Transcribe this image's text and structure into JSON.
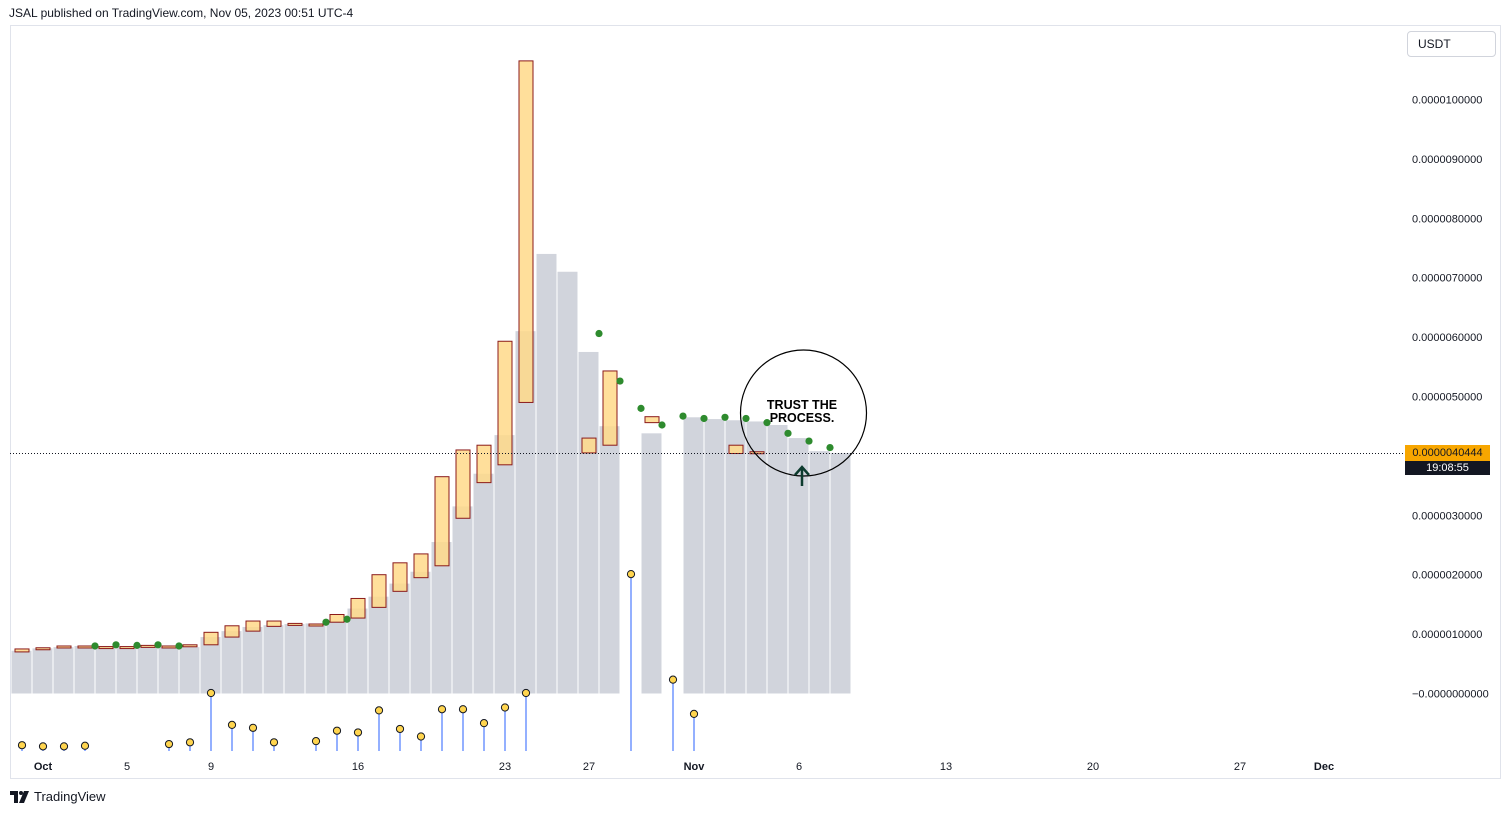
{
  "header": {
    "title": "JSAL published on TradingView.com, Nov 05, 2023 00:51 UTC-4"
  },
  "currency": {
    "label": "USDT"
  },
  "price_tag": {
    "price": "0.0000040444",
    "countdown": "19:08:55"
  },
  "annotation": {
    "line1": "TRUST THE",
    "line2": "PROCESS."
  },
  "footer": {
    "brand": "TradingView",
    "logo_icon": "tradingview-logo-icon"
  },
  "colors": {
    "candle_body": "#ffd98a",
    "candle_border": "#8b1a1a",
    "volume_bar": "#d1d4dc",
    "dot_green": "#2e8b2e",
    "lollipop_line": "#2962ff",
    "lollipop_head": "#ffd54f",
    "price_tag": "#f7a600"
  },
  "chart_data": {
    "type": "candlestick",
    "price_axis": {
      "labels": [
        "0.0000100000",
        "0.0000090000",
        "0.0000080000",
        "0.0000070000",
        "0.0000060000",
        "0.0000050000",
        "0.0000030000",
        "0.0000020000",
        "0.0000010000",
        "−0.0000000000"
      ],
      "values": [
        10.0,
        9.0,
        8.0,
        7.0,
        6.0,
        5.0,
        3.0,
        2.0,
        1.0,
        0.0
      ],
      "unit_scale": "1e-6"
    },
    "time_axis": {
      "labels": [
        "Oct",
        "5",
        "9",
        "16",
        "23",
        "27",
        "Nov",
        "6",
        "13",
        "20",
        "27",
        "Dec"
      ],
      "dates": [
        "2023-10-01",
        "2023-10-05",
        "2023-10-09",
        "2023-10-16",
        "2023-10-23",
        "2023-10-27",
        "2023-11-01",
        "2023-11-06",
        "2023-11-13",
        "2023-11-20",
        "2023-11-27",
        "2023-12-01"
      ]
    },
    "last_price": 4.0444,
    "candles": [
      {
        "date": "2023-09-30",
        "open": 0.7,
        "close": 0.75
      },
      {
        "date": "2023-10-01",
        "open": 0.75,
        "close": 0.77
      },
      {
        "date": "2023-10-02",
        "open": 0.77,
        "close": 0.8
      },
      {
        "date": "2023-10-03",
        "open": 0.8,
        "close": 0.77
      },
      {
        "date": "2023-10-04",
        "open": 0.77,
        "close": 0.79
      },
      {
        "date": "2023-10-05",
        "open": 0.79,
        "close": 0.78
      },
      {
        "date": "2023-10-06",
        "open": 0.78,
        "close": 0.81
      },
      {
        "date": "2023-10-07",
        "open": 0.78,
        "close": 0.8
      },
      {
        "date": "2023-10-08",
        "open": 0.82,
        "close": 0.82
      },
      {
        "date": "2023-10-09",
        "open": 0.82,
        "close": 1.03
      },
      {
        "date": "2023-10-10",
        "open": 0.95,
        "close": 1.14
      },
      {
        "date": "2023-10-11",
        "open": 1.05,
        "close": 1.22
      },
      {
        "date": "2023-10-12",
        "open": 1.13,
        "close": 1.22
      },
      {
        "date": "2023-10-13",
        "open": 1.15,
        "close": 1.18
      },
      {
        "date": "2023-10-14",
        "open": 1.15,
        "close": 1.17
      },
      {
        "date": "2023-10-15",
        "open": 1.2,
        "close": 1.33
      },
      {
        "date": "2023-10-16",
        "open": 1.27,
        "close": 1.6
      },
      {
        "date": "2023-10-17",
        "open": 1.45,
        "close": 2.0
      },
      {
        "date": "2023-10-18",
        "open": 1.72,
        "close": 2.2
      },
      {
        "date": "2023-10-19",
        "open": 1.95,
        "close": 2.35
      },
      {
        "date": "2023-10-20",
        "open": 2.15,
        "close": 3.65
      },
      {
        "date": "2023-10-21",
        "open": 2.95,
        "close": 4.1
      },
      {
        "date": "2023-10-22",
        "open": 3.55,
        "close": 4.18
      },
      {
        "date": "2023-10-23",
        "open": 3.85,
        "close": 5.93
      },
      {
        "date": "2023-10-24",
        "open": 4.9,
        "close": 10.65
      },
      {
        "date": "2023-10-27",
        "open": 4.05,
        "close": 4.3
      },
      {
        "date": "2023-10-28",
        "open": 4.18,
        "close": 5.43
      },
      {
        "date": "2023-10-30",
        "open": 4.56,
        "close": 4.66
      },
      {
        "date": "2023-11-03",
        "open": 4.04,
        "close": 4.18
      },
      {
        "date": "2023-11-04",
        "open": 4.04,
        "close": 4.07
      }
    ],
    "volume": [
      0.72,
      0.76,
      0.78,
      0.8,
      0.8,
      0.79,
      0.79,
      0.78,
      0.78,
      0.95,
      1.05,
      1.12,
      1.15,
      1.17,
      1.18,
      1.22,
      1.43,
      1.63,
      1.85,
      2.05,
      2.55,
      3.15,
      3.7,
      4.35,
      6.1,
      7.4,
      7.1,
      5.75,
      4.5,
      4.25,
      4.38,
      4.55,
      4.65,
      4.62,
      4.6,
      4.58,
      4.52,
      4.3,
      4.08,
      4.05
    ],
    "dots": [
      {
        "i": 3,
        "y": 0.8
      },
      {
        "i": 4,
        "y": 0.82
      },
      {
        "i": 5,
        "y": 0.81
      },
      {
        "i": 6,
        "y": 0.82
      },
      {
        "i": 7,
        "y": 0.8
      },
      {
        "i": 14,
        "y": 1.2
      },
      {
        "i": 15,
        "y": 1.25
      },
      {
        "i": 27,
        "y": 6.06
      },
      {
        "i": 28,
        "y": 5.26
      },
      {
        "i": 29,
        "y": 4.8
      },
      {
        "i": 30,
        "y": 4.52
      },
      {
        "i": 31,
        "y": 4.67
      },
      {
        "i": 32,
        "y": 4.63
      },
      {
        "i": 33,
        "y": 4.65
      },
      {
        "i": 34,
        "y": 4.63
      },
      {
        "i": 35,
        "y": 4.56
      },
      {
        "i": 36,
        "y": 4.38
      },
      {
        "i": 37,
        "y": 4.25
      },
      {
        "i": 38,
        "y": 4.14
      }
    ],
    "oscillator": [
      {
        "i": 0,
        "v": 0.1
      },
      {
        "i": 1,
        "v": 0.08
      },
      {
        "i": 2,
        "v": 0.08
      },
      {
        "i": 3,
        "v": 0.09
      },
      {
        "i": 7,
        "v": 0.12
      },
      {
        "i": 8,
        "v": 0.15
      },
      {
        "i": 9,
        "v": 1.0
      },
      {
        "i": 10,
        "v": 0.45
      },
      {
        "i": 11,
        "v": 0.4
      },
      {
        "i": 12,
        "v": 0.15
      },
      {
        "i": 14,
        "v": 0.17
      },
      {
        "i": 15,
        "v": 0.35
      },
      {
        "i": 16,
        "v": 0.32
      },
      {
        "i": 17,
        "v": 0.7
      },
      {
        "i": 18,
        "v": 0.38
      },
      {
        "i": 19,
        "v": 0.25
      },
      {
        "i": 20,
        "v": 0.72
      },
      {
        "i": 21,
        "v": 0.72
      },
      {
        "i": 22,
        "v": 0.48
      },
      {
        "i": 23,
        "v": 0.75
      },
      {
        "i": 24,
        "v": 1.0
      },
      {
        "i": 29,
        "v": 3.05
      },
      {
        "i": 31,
        "v": 1.23
      },
      {
        "i": 32,
        "v": 0.64
      }
    ]
  }
}
